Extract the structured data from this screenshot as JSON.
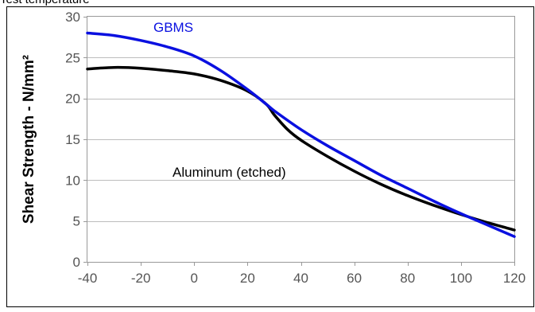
{
  "caption": "Test temperature",
  "chart_data": {
    "type": "line",
    "title": "",
    "xlabel": "",
    "ylabel": "Shear Strength - N/mm²",
    "xlim": [
      -40,
      120
    ],
    "ylim": [
      0,
      30
    ],
    "xticks": [
      -40,
      -20,
      0,
      20,
      40,
      60,
      80,
      100,
      120
    ],
    "yticks": [
      0,
      5,
      10,
      15,
      20,
      25,
      30
    ],
    "grid": "horizontal",
    "series": [
      {
        "name": "GBMS",
        "color": "#0a10e0",
        "x": [
          -40,
          -30,
          -20,
          -10,
          0,
          10,
          20,
          27,
          30,
          40,
          50,
          60,
          70,
          80,
          90,
          100,
          110,
          120
        ],
        "y": [
          28.0,
          27.7,
          27.1,
          26.3,
          25.2,
          23.4,
          21.1,
          19.3,
          18.5,
          16.2,
          14.2,
          12.4,
          10.6,
          9.0,
          7.4,
          5.9,
          4.5,
          3.1
        ]
      },
      {
        "name": "Aluminum (etched)",
        "color": "#000000",
        "x": [
          -40,
          -30,
          -20,
          -10,
          0,
          10,
          20,
          27,
          30,
          35,
          40,
          50,
          60,
          70,
          80,
          90,
          100,
          110,
          120
        ],
        "y": [
          23.6,
          23.8,
          23.7,
          23.4,
          23.0,
          22.2,
          20.9,
          19.3,
          18.0,
          16.2,
          14.9,
          12.9,
          11.1,
          9.5,
          8.1,
          6.9,
          5.8,
          4.8,
          3.9
        ]
      }
    ]
  }
}
